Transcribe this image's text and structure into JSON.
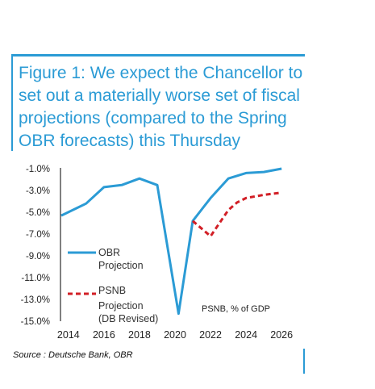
{
  "figure": {
    "title": "Figure 1: We expect the Chancellor to set out a materially worse set of fiscal projections (compared to the Spring OBR forecasts) this Thursday",
    "source": "Source : Deutsche Bank, OBR"
  },
  "colors": {
    "accent": "#2b9bd5",
    "obr": "#2b9bd5",
    "psnb": "#d21f26"
  },
  "chart_data": {
    "type": "line",
    "title": "",
    "xlabel": "",
    "ylabel": "",
    "xlim": [
      2013.6,
      2026.4
    ],
    "ylim": [
      -15.0,
      -1.0
    ],
    "x_ticks": [
      2014,
      2016,
      2018,
      2020,
      2022,
      2024,
      2026
    ],
    "y_ticks": [
      -1.0,
      -3.0,
      -5.0,
      -7.0,
      -9.0,
      -11.0,
      -13.0,
      -15.0
    ],
    "y_tick_labels": [
      "-1.0%",
      "-3.0%",
      "-5.0%",
      "-7.0%",
      "-9.0%",
      "-11.0%",
      "-13.0%",
      "-15.0%"
    ],
    "grid": false,
    "annotation": "PSNB, % of GDP",
    "legend_position": "left",
    "series": [
      {
        "name": "OBR Projection",
        "style": "solid",
        "color": "#2b9bd5",
        "x": [
          2013.6,
          2015.0,
          2016.0,
          2017.0,
          2018.0,
          2019.0,
          2020.2,
          2021.0,
          2022.0,
          2023.0,
          2024.0,
          2025.0,
          2026.0
        ],
        "y": [
          -5.3,
          -4.2,
          -2.7,
          -2.5,
          -1.9,
          -2.5,
          -14.3,
          -5.8,
          -3.7,
          -1.9,
          -1.4,
          -1.3,
          -1.0
        ]
      },
      {
        "name": "PSNB Projection (DB Revised)",
        "style": "dashed",
        "color": "#d21f26",
        "x": [
          2021.0,
          2022.0,
          2023.0,
          2023.5,
          2024.0,
          2025.0,
          2026.0
        ],
        "y": [
          -5.8,
          -7.2,
          -4.8,
          -4.1,
          -3.7,
          -3.4,
          -3.2
        ]
      }
    ]
  }
}
